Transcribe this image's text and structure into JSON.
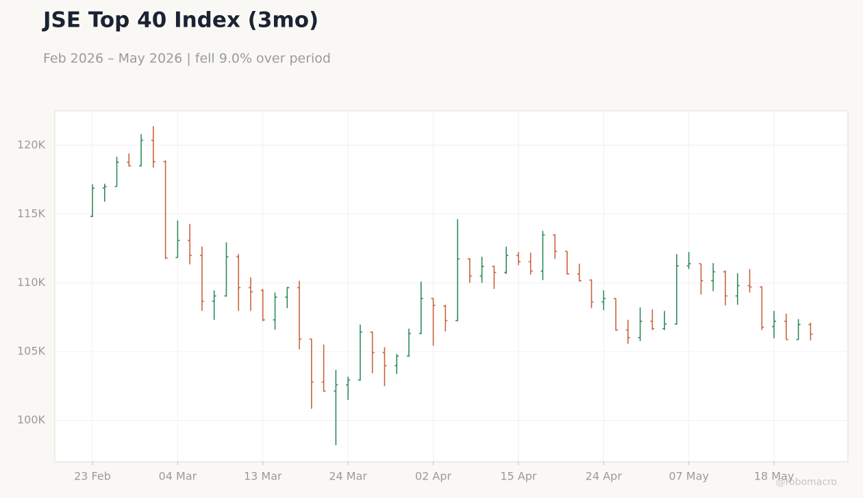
{
  "chart_data": {
    "type": "ohlc",
    "title": "JSE Top 40 Index (3mo)",
    "subtitle": "Feb 2026 – May 2026 | fell 9.0% over period",
    "watermark": "@robomacro",
    "up_color": "#2e8a57",
    "down_color": "#c8623f",
    "grid": true,
    "categories": [
      "23 Feb",
      null,
      null,
      null,
      null,
      null,
      null,
      "04 Mar",
      null,
      null,
      null,
      null,
      null,
      null,
      "13 Mar",
      null,
      null,
      null,
      null,
      null,
      null,
      "24 Mar",
      null,
      null,
      null,
      null,
      null,
      null,
      "02 Apr",
      null,
      null,
      null,
      null,
      null,
      null,
      "15 Apr",
      null,
      null,
      null,
      null,
      null,
      null,
      "24 Apr",
      null,
      null,
      null,
      null,
      null,
      null,
      "07 May",
      null,
      null,
      null,
      null,
      null,
      null,
      "18 May",
      null,
      null,
      null
    ],
    "open": [
      114830,
      116900,
      117000,
      118760,
      118500,
      120350,
      118800,
      111840,
      113080,
      111990,
      108660,
      109050,
      111890,
      109650,
      109450,
      107310,
      108960,
      109650,
      105920,
      102790,
      102140,
      102590,
      102940,
      106420,
      104930,
      103980,
      104680,
      106320,
      108860,
      108310,
      107260,
      111740,
      110500,
      111190,
      110750,
      111990,
      111540,
      110850,
      113480,
      112290,
      110650,
      110200,
      108610,
      108860,
      106570,
      106020,
      107210,
      106670,
      107010,
      111240,
      111390,
      110150,
      110800,
      109050,
      109800,
      109700,
      106820,
      107210,
      105870,
      106970
    ],
    "high": [
      117160,
      117200,
      119150,
      119400,
      120800,
      121390,
      118900,
      114530,
      114280,
      112640,
      109450,
      112940,
      112090,
      110400,
      109550,
      109300,
      109700,
      110150,
      105920,
      105520,
      103680,
      103180,
      106970,
      106470,
      105320,
      104830,
      106670,
      110100,
      108900,
      108410,
      114630,
      111790,
      111890,
      111240,
      112640,
      112240,
      112190,
      113780,
      113530,
      112290,
      111390,
      110250,
      109450,
      108860,
      107310,
      108210,
      108060,
      107960,
      112090,
      112240,
      111390,
      111440,
      110900,
      110700,
      111000,
      109750,
      107960,
      107760,
      107360,
      107110
    ],
    "low": [
      114780,
      115900,
      117000,
      118460,
      118460,
      118360,
      111740,
      111840,
      111340,
      107960,
      107310,
      109000,
      107960,
      107960,
      107210,
      106600,
      108160,
      105170,
      100850,
      102090,
      98210,
      101490,
      102890,
      103430,
      102490,
      103380,
      104630,
      106270,
      105420,
      106470,
      107210,
      110000,
      110000,
      109550,
      110650,
      111290,
      110600,
      110200,
      111740,
      110600,
      110100,
      108160,
      108010,
      106520,
      105570,
      105770,
      106570,
      106570,
      106970,
      111000,
      109150,
      109400,
      108360,
      108410,
      109300,
      106570,
      105970,
      105870,
      105870,
      105820
    ],
    "close": [
      116870,
      117000,
      118760,
      118500,
      120350,
      118800,
      111790,
      113080,
      111990,
      108660,
      109050,
      111890,
      109650,
      109350,
      107310,
      108960,
      109650,
      105920,
      102790,
      102140,
      102590,
      102940,
      106420,
      104930,
      103980,
      104680,
      106320,
      108860,
      108360,
      107260,
      111740,
      110500,
      111190,
      110750,
      111990,
      111540,
      110850,
      113480,
      112290,
      110650,
      110150,
      108610,
      108860,
      106570,
      106020,
      107210,
      106670,
      107010,
      111240,
      111390,
      110150,
      110800,
      109050,
      109800,
      109700,
      106770,
      107210,
      105870,
      106970,
      106270
    ],
    "ylim": [
      97000,
      122500
    ],
    "yticks": [
      {
        "value": 100000,
        "label": "100K"
      },
      {
        "value": 105000,
        "label": "105K"
      },
      {
        "value": 110000,
        "label": "110K"
      },
      {
        "value": 115000,
        "label": "115K"
      },
      {
        "value": 120000,
        "label": "120K"
      }
    ]
  }
}
